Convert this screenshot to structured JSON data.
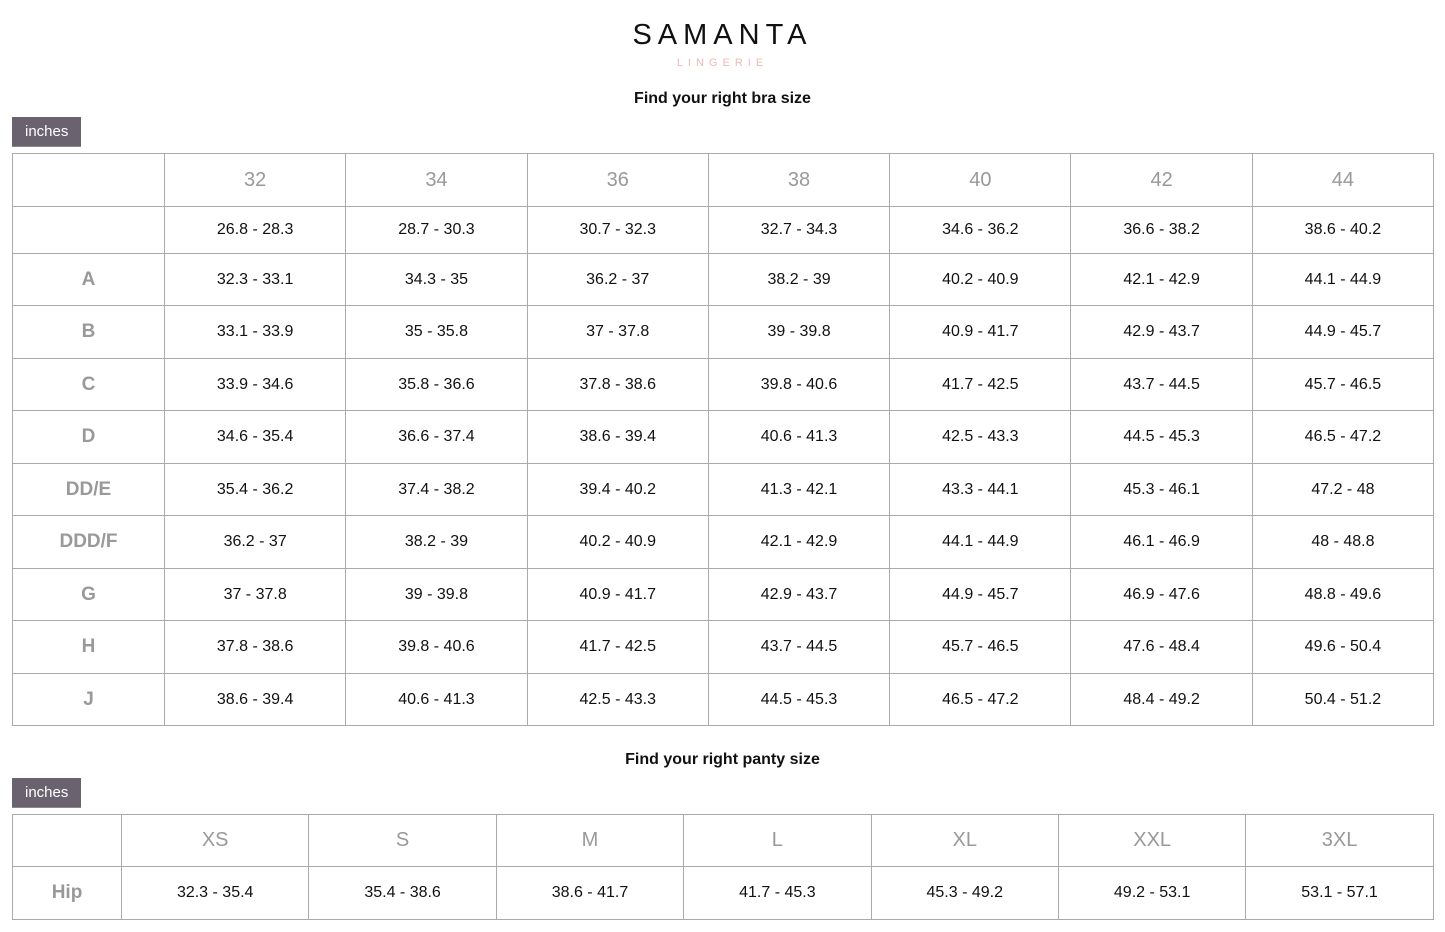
{
  "brand": {
    "name": "SAMANTA",
    "tagline": "LINGERIE",
    "accent": "#f0b9b3"
  },
  "bra": {
    "title": "Find your right bra size",
    "unit_label": "inches",
    "columns": [
      "32",
      "34",
      "36",
      "38",
      "40",
      "42",
      "44"
    ],
    "rows": [
      {
        "label": "",
        "values": [
          "26.8 - 28.3",
          "28.7 - 30.3",
          "30.7 - 32.3",
          "32.7 - 34.3",
          "34.6 - 36.2",
          "36.6 - 38.2",
          "38.6 - 40.2"
        ]
      },
      {
        "label": "A",
        "values": [
          "32.3 - 33.1",
          "34.3 - 35",
          "36.2 - 37",
          "38.2 - 39",
          "40.2 - 40.9",
          "42.1 - 42.9",
          "44.1 - 44.9"
        ]
      },
      {
        "label": "B",
        "values": [
          "33.1 - 33.9",
          "35 - 35.8",
          "37 - 37.8",
          "39 - 39.8",
          "40.9 - 41.7",
          "42.9 - 43.7",
          "44.9 - 45.7"
        ]
      },
      {
        "label": "C",
        "values": [
          "33.9 - 34.6",
          "35.8 - 36.6",
          "37.8 - 38.6",
          "39.8 - 40.6",
          "41.7 - 42.5",
          "43.7 - 44.5",
          "45.7 - 46.5"
        ]
      },
      {
        "label": "D",
        "values": [
          "34.6 - 35.4",
          "36.6 - 37.4",
          "38.6 - 39.4",
          "40.6 - 41.3",
          "42.5 - 43.3",
          "44.5 - 45.3",
          "46.5 - 47.2"
        ]
      },
      {
        "label": "DD/E",
        "values": [
          "35.4 - 36.2",
          "37.4 - 38.2",
          "39.4 - 40.2",
          "41.3 - 42.1",
          "43.3 - 44.1",
          "45.3 - 46.1",
          "47.2 - 48"
        ]
      },
      {
        "label": "DDD/F",
        "values": [
          "36.2 - 37",
          "38.2 - 39",
          "40.2 - 40.9",
          "42.1 - 42.9",
          "44.1 - 44.9",
          "46.1 - 46.9",
          "48 - 48.8"
        ]
      },
      {
        "label": "G",
        "values": [
          "37 - 37.8",
          "39 - 39.8",
          "40.9 - 41.7",
          "42.9 - 43.7",
          "44.9 - 45.7",
          "46.9 - 47.6",
          "48.8 - 49.6"
        ]
      },
      {
        "label": "H",
        "values": [
          "37.8 - 38.6",
          "39.8 - 40.6",
          "41.7 - 42.5",
          "43.7 - 44.5",
          "45.7 - 46.5",
          "47.6 - 48.4",
          "49.6 - 50.4"
        ]
      },
      {
        "label": "J",
        "values": [
          "38.6 - 39.4",
          "40.6 - 41.3",
          "42.5 - 43.3",
          "44.5 - 45.3",
          "46.5 - 47.2",
          "48.4 - 49.2",
          "50.4 - 51.2"
        ]
      }
    ]
  },
  "panty": {
    "title": "Find your right panty size",
    "unit_label": "inches",
    "columns": [
      "XS",
      "S",
      "M",
      "L",
      "XL",
      "XXL",
      "3XL"
    ],
    "rows": [
      {
        "label": "Hip",
        "values": [
          "32.3 - 35.4",
          "35.4 - 38.6",
          "38.6 - 41.7",
          "41.7 - 45.3",
          "45.3 - 49.2",
          "49.2 - 53.1",
          "53.1 - 57.1"
        ]
      }
    ]
  }
}
